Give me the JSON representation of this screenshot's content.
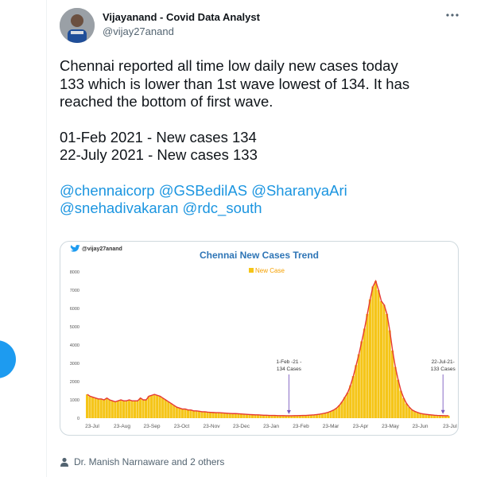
{
  "tweet": {
    "author_name": "Vijayanand - Covid Data Analyst",
    "author_handle": "@vijay27anand",
    "line1": "Chennai reported all time low daily new cases today",
    "line2": "133 which is lower than 1st wave lowest of 134. It has",
    "line3": "reached the bottom of first wave.",
    "line4": "01-Feb 2021 - New cases 134",
    "line5": "22-July 2021 - New cases 133",
    "mentions": [
      [
        "@chennaicorp",
        "@GSBedilAS",
        "@SharanyaAri"
      ],
      [
        "@snehadivakaran",
        "@rdc_south"
      ]
    ],
    "liked_by": "Dr. Manish Narnaware and 2 others"
  },
  "chart_watermark": "@vijay27anand",
  "colors": {
    "accent": "#1d9bf0",
    "bar": "#f5c518",
    "line": "#e53935",
    "title": "#2e75b6"
  },
  "chart_data": {
    "type": "bar",
    "title": "Chennai New Cases Trend",
    "legend": "New Case",
    "legend_position": "top-center",
    "ylim": [
      0,
      8000
    ],
    "yticks": [
      "0",
      "1000",
      "2000",
      "3000",
      "4000",
      "5000",
      "6000",
      "7000",
      "8000"
    ],
    "xticks": [
      "23-Jul",
      "23-Aug",
      "23-Sep",
      "23-Oct",
      "23-Nov",
      "23-Dec",
      "23-Jan",
      "23-Feb",
      "23-Mar",
      "23-Apr",
      "23-May",
      "23-Jun",
      "23-Jul"
    ],
    "series": [
      {
        "name": "New Case",
        "values": [
          1300,
          1200,
          1150,
          1100,
          1050,
          1050,
          1000,
          1100,
          1000,
          950,
          900,
          950,
          1000,
          950,
          950,
          1000,
          950,
          950,
          950,
          1100,
          1000,
          1000,
          1200,
          1250,
          1300,
          1250,
          1200,
          1100,
          1000,
          900,
          800,
          700,
          600,
          550,
          500,
          500,
          450,
          450,
          400,
          400,
          380,
          350,
          350,
          330,
          320,
          310,
          300,
          300,
          290,
          280,
          270,
          260,
          250,
          250,
          240,
          230,
          220,
          210,
          200,
          190,
          180,
          180,
          170,
          160,
          160,
          150,
          150,
          150,
          140,
          140,
          140,
          135,
          134,
          135,
          140,
          140,
          145,
          150,
          150,
          160,
          170,
          180,
          200,
          220,
          250,
          280,
          320,
          380,
          450,
          550,
          700,
          900,
          1150,
          1400,
          1800,
          2300,
          2900,
          3500,
          4200,
          4900,
          5700,
          6500,
          7200,
          7500,
          7000,
          6400,
          6200,
          5700,
          4800,
          3700,
          2800,
          2100,
          1500,
          1100,
          800,
          600,
          450,
          370,
          310,
          260,
          230,
          210,
          190,
          175,
          160,
          150,
          145,
          140,
          135,
          133
        ]
      }
    ],
    "annotations": [
      {
        "text": [
          "1-Feb -21 -",
          "134 Cases"
        ],
        "point_index": 72
      },
      {
        "text": [
          "22-Jul-21-",
          "133 Cases"
        ],
        "point_index": 127
      }
    ]
  }
}
